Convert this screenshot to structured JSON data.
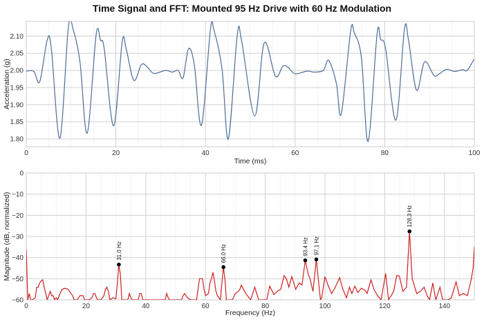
{
  "title": "Time Signal and FFT: Mounted 95 Hz Drive with 60 Hz Modulation",
  "chart_data": [
    {
      "type": "line",
      "xlabel": "Time (ms)",
      "ylabel": "Acceleration (g)",
      "xlim": [
        0,
        100
      ],
      "ylim": [
        1.777,
        2.143
      ],
      "xticks": [
        0,
        20,
        40,
        60,
        80,
        100
      ],
      "yticks": [
        1.8,
        1.85,
        1.9,
        1.95,
        2.0,
        2.05,
        2.1
      ],
      "grid": true,
      "color": "#4a6c96",
      "x": [
        0,
        1.7,
        3.0,
        4.7,
        5.6,
        7.5,
        9.4,
        10.5,
        12.0,
        13.6,
        15.6,
        16.6,
        17.4,
        19.5,
        21.4,
        22.3,
        24.0,
        25.7,
        27.0,
        28.5,
        31.1,
        32.6,
        33.9,
        35.0,
        36.2,
        37.5,
        39.1,
        41.1,
        41.9,
        43.7,
        45.1,
        47.1,
        48.1,
        51.0,
        53.1,
        55.6,
        57.3,
        58.6,
        60,
        62.7,
        64.2,
        66.3,
        67.5,
        69.2,
        70.3,
        72.4,
        73.2,
        74.8,
        76.3,
        78.3,
        79.1,
        80.2,
        82.5,
        84.4,
        85.3,
        87.1,
        88.9,
        91.0,
        92.2,
        93.8,
        95.6,
        97.4,
        98.4,
        99.8,
        100
      ],
      "y": [
        1.998,
        1.997,
        1.967,
        2.09,
        2.063,
        1.802,
        2.127,
        2.117,
        2.023,
        1.817,
        2.105,
        2.087,
        2.063,
        1.838,
        2.083,
        2.063,
        1.971,
        2.017,
        2.01,
        1.991,
        2.0,
        1.995,
        2.0,
        1.978,
        2.063,
        2.017,
        1.84,
        2.119,
        2.117,
        2.003,
        1.8,
        2.105,
        2.083,
        1.867,
        2.08,
        1.983,
        2.013,
        2.007,
        1.99,
        1.998,
        1.995,
        2.0,
        2.029,
        1.963,
        1.873,
        2.115,
        2.11,
        2.037,
        1.793,
        2.107,
        2.09,
        2.063,
        1.855,
        2.12,
        2.09,
        1.942,
        2.025,
        1.985,
        1.99,
        2.003,
        1.997,
        2.002,
        2.0,
        2.029,
        2.03
      ]
    },
    {
      "type": "line",
      "xlabel": "Frequency (Hz)",
      "ylabel": "Magnitude (dB, normalized)",
      "xlim": [
        0,
        150
      ],
      "ylim": [
        -60,
        0
      ],
      "xticks": [
        0,
        20,
        40,
        60,
        80,
        100,
        120,
        140
      ],
      "yticks": [
        0,
        -10,
        -20,
        -30,
        -40,
        -50,
        -60
      ],
      "grid": true,
      "color": "#cc2020",
      "x": [
        0,
        0.5,
        1,
        1.5,
        2,
        3,
        3.5,
        4,
        4.5,
        5,
        5.5,
        6,
        6.5,
        7,
        7.5,
        8,
        8.5,
        9,
        9.5,
        10,
        10.5,
        11,
        12,
        13,
        14,
        15,
        15.5,
        16,
        17,
        17.5,
        18,
        19,
        19.5,
        20,
        21,
        22,
        22.5,
        23,
        23.5,
        24,
        25,
        26,
        26.5,
        27,
        27.5,
        28,
        29,
        30,
        30.5,
        31,
        31.5,
        32,
        34,
        34.5,
        35,
        35.5,
        37.5,
        38,
        38.5,
        39,
        46.5,
        47,
        47.5,
        48,
        52,
        52.5,
        53,
        54,
        55,
        57,
        57.5,
        58,
        59,
        59.5,
        60,
        61,
        61.5,
        62,
        62.5,
        63,
        63.5,
        64,
        65,
        65.5,
        66,
        66.5,
        67,
        69,
        70,
        71,
        71.5,
        72,
        73.5,
        75.1,
        76.5,
        77.8,
        80.5,
        81.5,
        82.9,
        84,
        85.2,
        86.3,
        87.1,
        87.9,
        88.9,
        90.2,
        91.4,
        92.3,
        93.4,
        94.4,
        95,
        96,
        97.1,
        97.9,
        98.5,
        98.9,
        100,
        101,
        102.2,
        103.3,
        104.9,
        106,
        107.2,
        108.2,
        109,
        110,
        111,
        112.2,
        113.4,
        114.1,
        115.4,
        116.4,
        117.6,
        118.8,
        120.3,
        121.3,
        123,
        124,
        124.9,
        126.1,
        127.3,
        128.3,
        129.2,
        130.7,
        131.9,
        133.2,
        134.2,
        135,
        136.1,
        137.1,
        138.5,
        139.4,
        141.2,
        142.3,
        143.9,
        145,
        146.3,
        147.7,
        149,
        149.6,
        150
      ],
      "y": [
        -36.4,
        -60,
        -57,
        -60,
        -60,
        -59,
        -54,
        -54,
        -52,
        -51,
        -50.5,
        -54,
        -57,
        -60,
        -58,
        -56,
        -58,
        -58,
        -60,
        -59,
        -60,
        -58,
        -55,
        -54.5,
        -55,
        -57,
        -58,
        -60,
        -60,
        -59,
        -58,
        -58,
        -60,
        -60,
        -60,
        -59,
        -57,
        -57,
        -59,
        -60,
        -60,
        -58,
        -55,
        -54,
        -56,
        -60,
        -59,
        -59.5,
        -52,
        -43.3,
        -48,
        -60,
        -60,
        -57,
        -59,
        -60,
        -60,
        -57,
        -57,
        -60,
        -60,
        -57,
        -59,
        -60,
        -60,
        -58,
        -57,
        -59,
        -60,
        -60,
        -55,
        -50,
        -50,
        -55,
        -58,
        -57,
        -52,
        -50,
        -47,
        -51,
        -56,
        -58,
        -60,
        -52,
        -44.5,
        -50,
        -60,
        -60,
        -57,
        -56,
        -55,
        -53,
        -57,
        -60,
        -54,
        -60,
        -60,
        -53.5,
        -57.5,
        -56,
        -55,
        -48.5,
        -50,
        -54,
        -49,
        -55,
        -52,
        -53,
        -41.3,
        -48,
        -50,
        -56,
        -40.9,
        -52,
        -60,
        -59,
        -49,
        -53,
        -57,
        -54.5,
        -49.5,
        -55,
        -59,
        -54,
        -57,
        -53.5,
        -56.5,
        -54.5,
        -55.5,
        -57,
        -50.5,
        -55,
        -58,
        -60,
        -47.5,
        -60,
        -56,
        -48.5,
        -48.7,
        -56,
        -54,
        -27.6,
        -50,
        -57,
        -56,
        -54,
        -58,
        -60,
        -52,
        -60,
        -54,
        -60,
        -60,
        -59,
        -51.5,
        -58,
        -57,
        -58,
        -50,
        -45,
        -35
      ],
      "peaks": [
        {
          "freq": 31.0,
          "db": -43.3,
          "label": "31.0 Hz"
        },
        {
          "freq": 66.0,
          "db": -44.5,
          "label": "66.0 Hz"
        },
        {
          "freq": 93.4,
          "db": -41.3,
          "label": "93.4 Hz"
        },
        {
          "freq": 97.1,
          "db": -40.9,
          "label": "97.1 Hz"
        },
        {
          "freq": 128.3,
          "db": -27.6,
          "label": "128.3 Hz"
        }
      ]
    }
  ]
}
